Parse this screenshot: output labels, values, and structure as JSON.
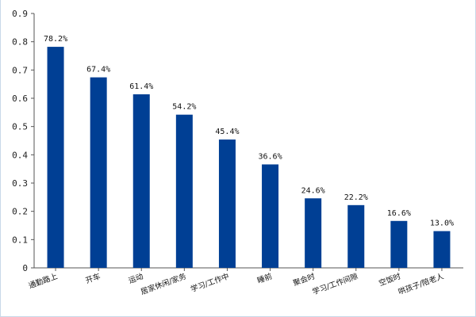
{
  "chart_data": {
    "type": "bar",
    "categories": [
      "通勤路上",
      "开车",
      "运动",
      "居家休闲/家务",
      "学习/工作中",
      "睡前",
      "聚会时",
      "学习/工作间隙",
      "空饭时",
      "哄孩子/陪老人"
    ],
    "values": [
      0.782,
      0.674,
      0.614,
      0.542,
      0.454,
      0.366,
      0.246,
      0.222,
      0.166,
      0.13
    ],
    "data_labels": [
      "78.2%",
      "67.4%",
      "61.4%",
      "54.2%",
      "45.4%",
      "36.6%",
      "24.6%",
      "22.2%",
      "16.6%",
      "13.0%"
    ],
    "yticks": [
      "0",
      "0.1",
      "0.2",
      "0.3",
      "0.4",
      "0.5",
      "0.6",
      "0.7",
      "0.8",
      "0.9"
    ],
    "ylim": [
      0,
      0.9
    ],
    "grid": false,
    "bar_color": "#003f94",
    "title": "",
    "xlabel": "",
    "ylabel": ""
  }
}
